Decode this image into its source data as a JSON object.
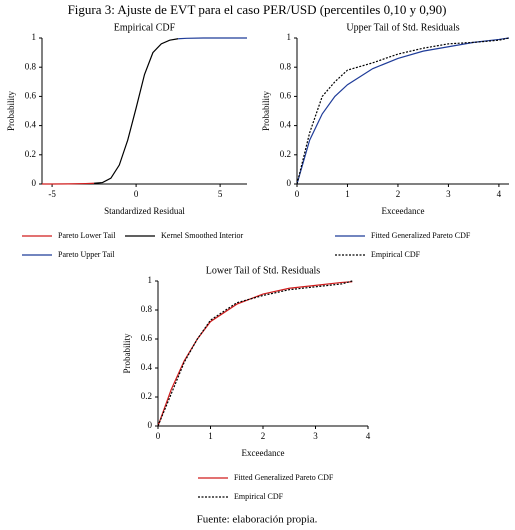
{
  "figure": {
    "title": "Figura 3: Ajuste de EVT para el caso PER/USD (percentiles 0,10 y 0,90)",
    "source": "Fuente: elaboración propia."
  },
  "chart_data": [
    {
      "type": "line",
      "title": "Empirical CDF",
      "xlabel": "Standardized Residual",
      "ylabel": "Probability",
      "x": [
        -5.6,
        -5,
        -4,
        -3,
        -2.5,
        -2,
        -1.5,
        -1,
        -0.5,
        0,
        0.5,
        1,
        1.5,
        2,
        2.5,
        3,
        4,
        5,
        6,
        6.6
      ],
      "series": [
        {
          "name": "Pareto Lower Tail",
          "color": "#d01c1c",
          "line_style": "solid",
          "values": [
            0,
            0,
            0.001,
            0.003,
            0.005,
            null,
            null,
            null,
            null,
            null,
            null,
            null,
            null,
            null,
            null,
            null,
            null,
            null,
            null,
            null
          ]
        },
        {
          "name": "Kernel Smoothed Interior",
          "color": "#000000",
          "line_style": "solid",
          "values": [
            null,
            null,
            null,
            null,
            0.005,
            0.01,
            0.04,
            0.13,
            0.3,
            0.52,
            0.75,
            0.9,
            0.96,
            0.985,
            0.995,
            null,
            null,
            null,
            null,
            null
          ]
        },
        {
          "name": "Pareto Upper Tail",
          "color": "#1f3c99",
          "line_style": "solid",
          "values": [
            null,
            null,
            null,
            null,
            null,
            null,
            null,
            null,
            null,
            null,
            null,
            null,
            null,
            null,
            0.995,
            0.998,
            1,
            1,
            1,
            1
          ]
        }
      ],
      "xlim": [
        -5.6,
        6.6
      ],
      "ylim": [
        0,
        1
      ],
      "xticks": [
        -5,
        0,
        5
      ],
      "yticks": [
        0,
        0.2,
        0.4,
        0.6,
        0.8,
        1
      ]
    },
    {
      "type": "line",
      "title": "Upper Tail of Std. Residuals",
      "xlabel": "Exceedance",
      "ylabel": "Probability",
      "x": [
        0,
        0.25,
        0.5,
        0.75,
        1,
        1.5,
        2,
        2.5,
        3,
        3.5,
        4,
        4.2
      ],
      "series": [
        {
          "name": "Fitted Generalized Pareto CDF",
          "color": "#1f3c99",
          "line_style": "solid",
          "values": [
            0,
            0.3,
            0.48,
            0.6,
            0.68,
            0.79,
            0.86,
            0.91,
            0.94,
            0.97,
            0.99,
            1
          ]
        },
        {
          "name": "Empirical CDF",
          "color": "#000000",
          "line_style": "dotted",
          "values": [
            0,
            0.35,
            0.6,
            0.7,
            0.78,
            0.83,
            0.89,
            0.93,
            0.96,
            0.97,
            0.985,
            1
          ]
        }
      ],
      "xlim": [
        0,
        4.2
      ],
      "ylim": [
        0,
        1
      ],
      "xticks": [
        0,
        1,
        2,
        3,
        4
      ],
      "yticks": [
        0,
        0.2,
        0.4,
        0.6,
        0.8,
        1
      ]
    },
    {
      "type": "line",
      "title": "Lower Tail of Std. Residuals",
      "xlabel": "Exceedance",
      "ylabel": "Probability",
      "x": [
        0,
        0.25,
        0.5,
        0.75,
        1,
        1.5,
        2,
        2.5,
        3,
        3.5,
        3.7
      ],
      "series": [
        {
          "name": "Fitted Generalized Pareto CDF",
          "color": "#d01c1c",
          "line_style": "solid",
          "values": [
            0,
            0.25,
            0.45,
            0.6,
            0.72,
            0.84,
            0.91,
            0.95,
            0.97,
            0.99,
            0.995
          ]
        },
        {
          "name": "Empirical CDF",
          "color": "#000000",
          "line_style": "dotted",
          "values": [
            0,
            0.22,
            0.44,
            0.6,
            0.73,
            0.85,
            0.9,
            0.94,
            0.96,
            0.98,
            1
          ]
        }
      ],
      "xlim": [
        0,
        4
      ],
      "ylim": [
        0,
        1
      ],
      "xticks": [
        0,
        1,
        2,
        3,
        4
      ],
      "yticks": [
        0,
        0.2,
        0.4,
        0.6,
        0.8,
        1
      ]
    }
  ]
}
